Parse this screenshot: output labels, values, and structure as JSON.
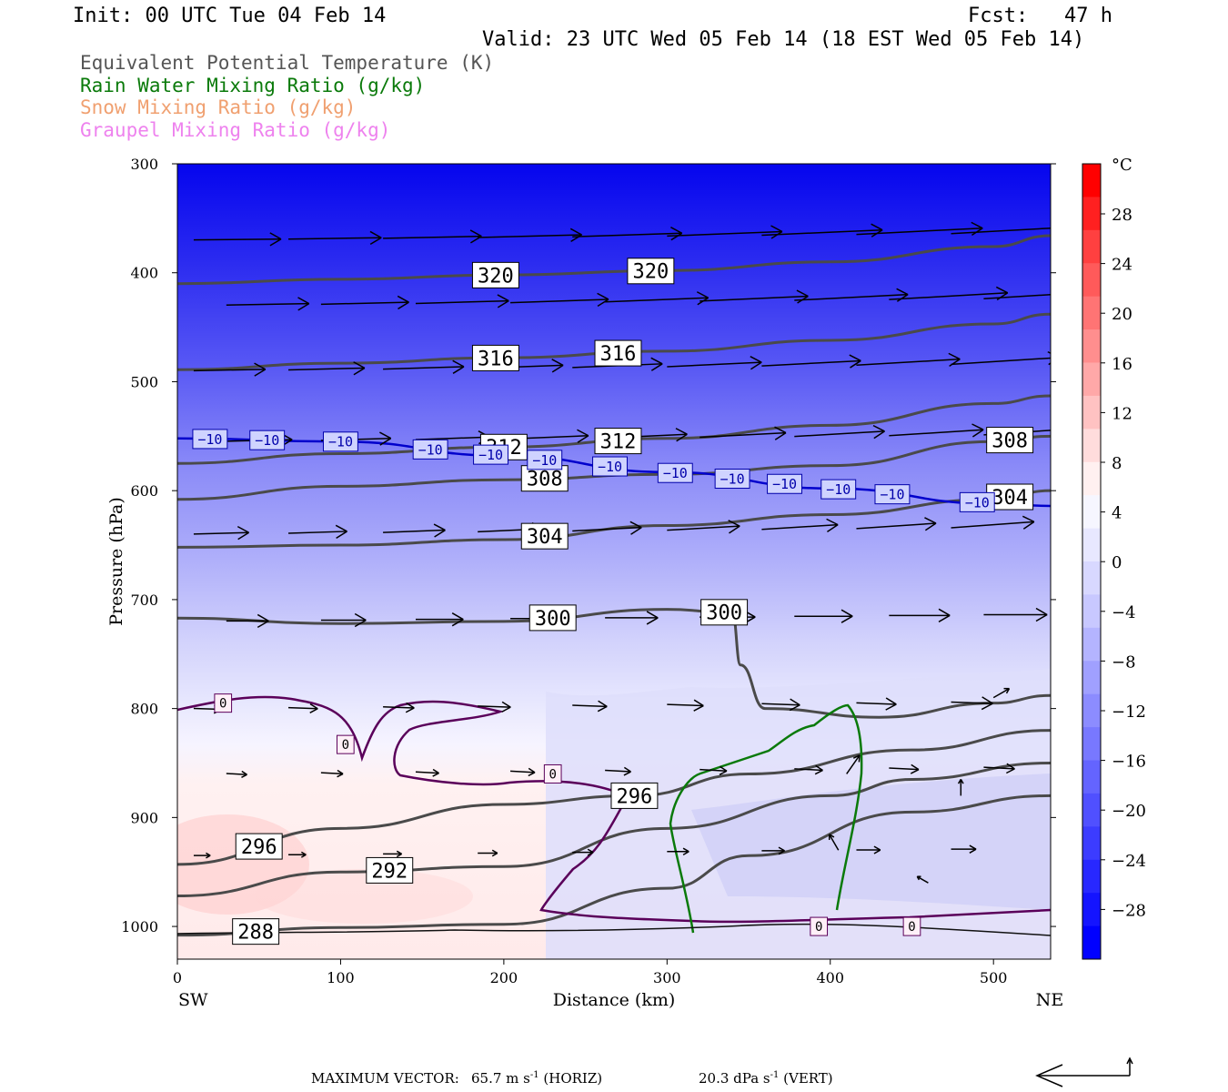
{
  "header": {
    "init": "Init: 00 UTC Tue 04 Feb 14",
    "fcst": "Fcst:   47 h",
    "valid": "Valid: 23 UTC Wed 05 Feb 14 (18 EST Wed 05 Feb 14)"
  },
  "variables": [
    {
      "label": "Equivalent Potential Temperature (K)",
      "color": "#555555"
    },
    {
      "label": "Rain Water Mixing Ratio (g/kg)",
      "color": "#0a7a0a"
    },
    {
      "label": "Snow Mixing Ratio (g/kg)",
      "color": "#f0a070"
    },
    {
      "label": "Graupel Mixing Ratio (g/kg)",
      "color": "#ee82ee"
    }
  ],
  "footer": {
    "label": "MAXIMUM VECTOR:",
    "horiz_value": "65.7 m s",
    "horiz_exp": "-1",
    "horiz_tag": "(HORIZ)",
    "vert_value": "20.3 dPa s",
    "vert_exp": "-1",
    "vert_tag": "(VERT)"
  },
  "chart_data": {
    "type": "contour",
    "xlabel": "Distance (km)",
    "ylabel": "Pressure (hPa)",
    "xlim": [
      0,
      535
    ],
    "ylim": [
      1030,
      300
    ],
    "x_ticks": [
      0,
      100,
      200,
      300,
      400,
      500
    ],
    "y_ticks": [
      300,
      400,
      500,
      600,
      700,
      800,
      900,
      1000
    ],
    "x_end_labels": {
      "left": "SW",
      "right": "NE"
    },
    "colorbar": {
      "unit": "°C",
      "ticks": [
        "28",
        "24",
        "20",
        "16",
        "12",
        "8",
        "4",
        "0",
        "−4",
        "−8",
        "−12",
        "−16",
        "−20",
        "−24",
        "−28"
      ],
      "colors": [
        "#ff0000",
        "#ff2020",
        "#ff4040",
        "#ff5a5a",
        "#ff7474",
        "#ff8e8e",
        "#ffa8a8",
        "#ffc2c2",
        "#ffdcdc",
        "#fff0f0",
        "#f6f6ff",
        "#e8e8ff",
        "#d8d8ff",
        "#c8c8ff",
        "#b4b4ff",
        "#a0a0ff",
        "#8c8cff",
        "#7878ff",
        "#6464ff",
        "#5050ff",
        "#3c3cff",
        "#2828ff",
        "#1414ff",
        "#0000ff"
      ]
    },
    "theta_e_contours": [
      {
        "label": "320",
        "points": [
          [
            0,
            410
          ],
          [
            100,
            406
          ],
          [
            200,
            402
          ],
          [
            300,
            398
          ],
          [
            400,
            390
          ],
          [
            500,
            376
          ],
          [
            535,
            366
          ]
        ]
      },
      {
        "label": "316",
        "points": [
          [
            0,
            489
          ],
          [
            100,
            483
          ],
          [
            200,
            478
          ],
          [
            300,
            472
          ],
          [
            400,
            462
          ],
          [
            500,
            447
          ],
          [
            535,
            438
          ]
        ]
      },
      {
        "label": "312",
        "points": [
          [
            0,
            575
          ],
          [
            100,
            566
          ],
          [
            200,
            560
          ],
          [
            300,
            552
          ],
          [
            400,
            540
          ],
          [
            500,
            520
          ],
          [
            535,
            513
          ]
        ]
      },
      {
        "label": "308",
        "points": [
          [
            0,
            608
          ],
          [
            100,
            596
          ],
          [
            200,
            590
          ],
          [
            300,
            585
          ],
          [
            400,
            577
          ],
          [
            500,
            555
          ],
          [
            535,
            550
          ]
        ]
      },
      {
        "label": "304",
        "points": [
          [
            0,
            652
          ],
          [
            100,
            650
          ],
          [
            200,
            645
          ],
          [
            300,
            632
          ],
          [
            400,
            622
          ],
          [
            500,
            608
          ],
          [
            535,
            600
          ]
        ]
      },
      {
        "label": "300",
        "points": [
          [
            0,
            717
          ],
          [
            100,
            722
          ],
          [
            200,
            720
          ],
          [
            300,
            709
          ],
          [
            340,
            712
          ],
          [
            345,
            760
          ],
          [
            360,
            800
          ],
          [
            430,
            808
          ],
          [
            500,
            795
          ],
          [
            535,
            788
          ]
        ]
      },
      {
        "label": "296",
        "points": [
          [
            0,
            943
          ],
          [
            100,
            910
          ],
          [
            200,
            888
          ],
          [
            280,
            880
          ],
          [
            350,
            860
          ],
          [
            450,
            838
          ],
          [
            535,
            820
          ]
        ]
      },
      {
        "label": "292",
        "points": [
          [
            0,
            972
          ],
          [
            100,
            950
          ],
          [
            200,
            945
          ],
          [
            300,
            910
          ],
          [
            400,
            880
          ],
          [
            450,
            865
          ],
          [
            535,
            850
          ]
        ]
      },
      {
        "label": "288",
        "points": [
          [
            0,
            1008
          ],
          [
            100,
            1001
          ],
          [
            200,
            998
          ],
          [
            300,
            965
          ],
          [
            350,
            935
          ],
          [
            450,
            895
          ],
          [
            535,
            880
          ]
        ]
      }
    ],
    "isotherm_minus10": {
      "label": "−10",
      "color": "#0000cc",
      "points": [
        [
          0,
          552
        ],
        [
          100,
          555
        ],
        [
          200,
          568
        ],
        [
          300,
          583
        ],
        [
          400,
          598
        ],
        [
          500,
          612
        ],
        [
          535,
          614
        ]
      ]
    },
    "freezing_contour": {
      "label": "0",
      "color": "#5a005a"
    },
    "rain_region": {
      "color": "#0a7a0a",
      "max_height_hPa": 797
    }
  }
}
